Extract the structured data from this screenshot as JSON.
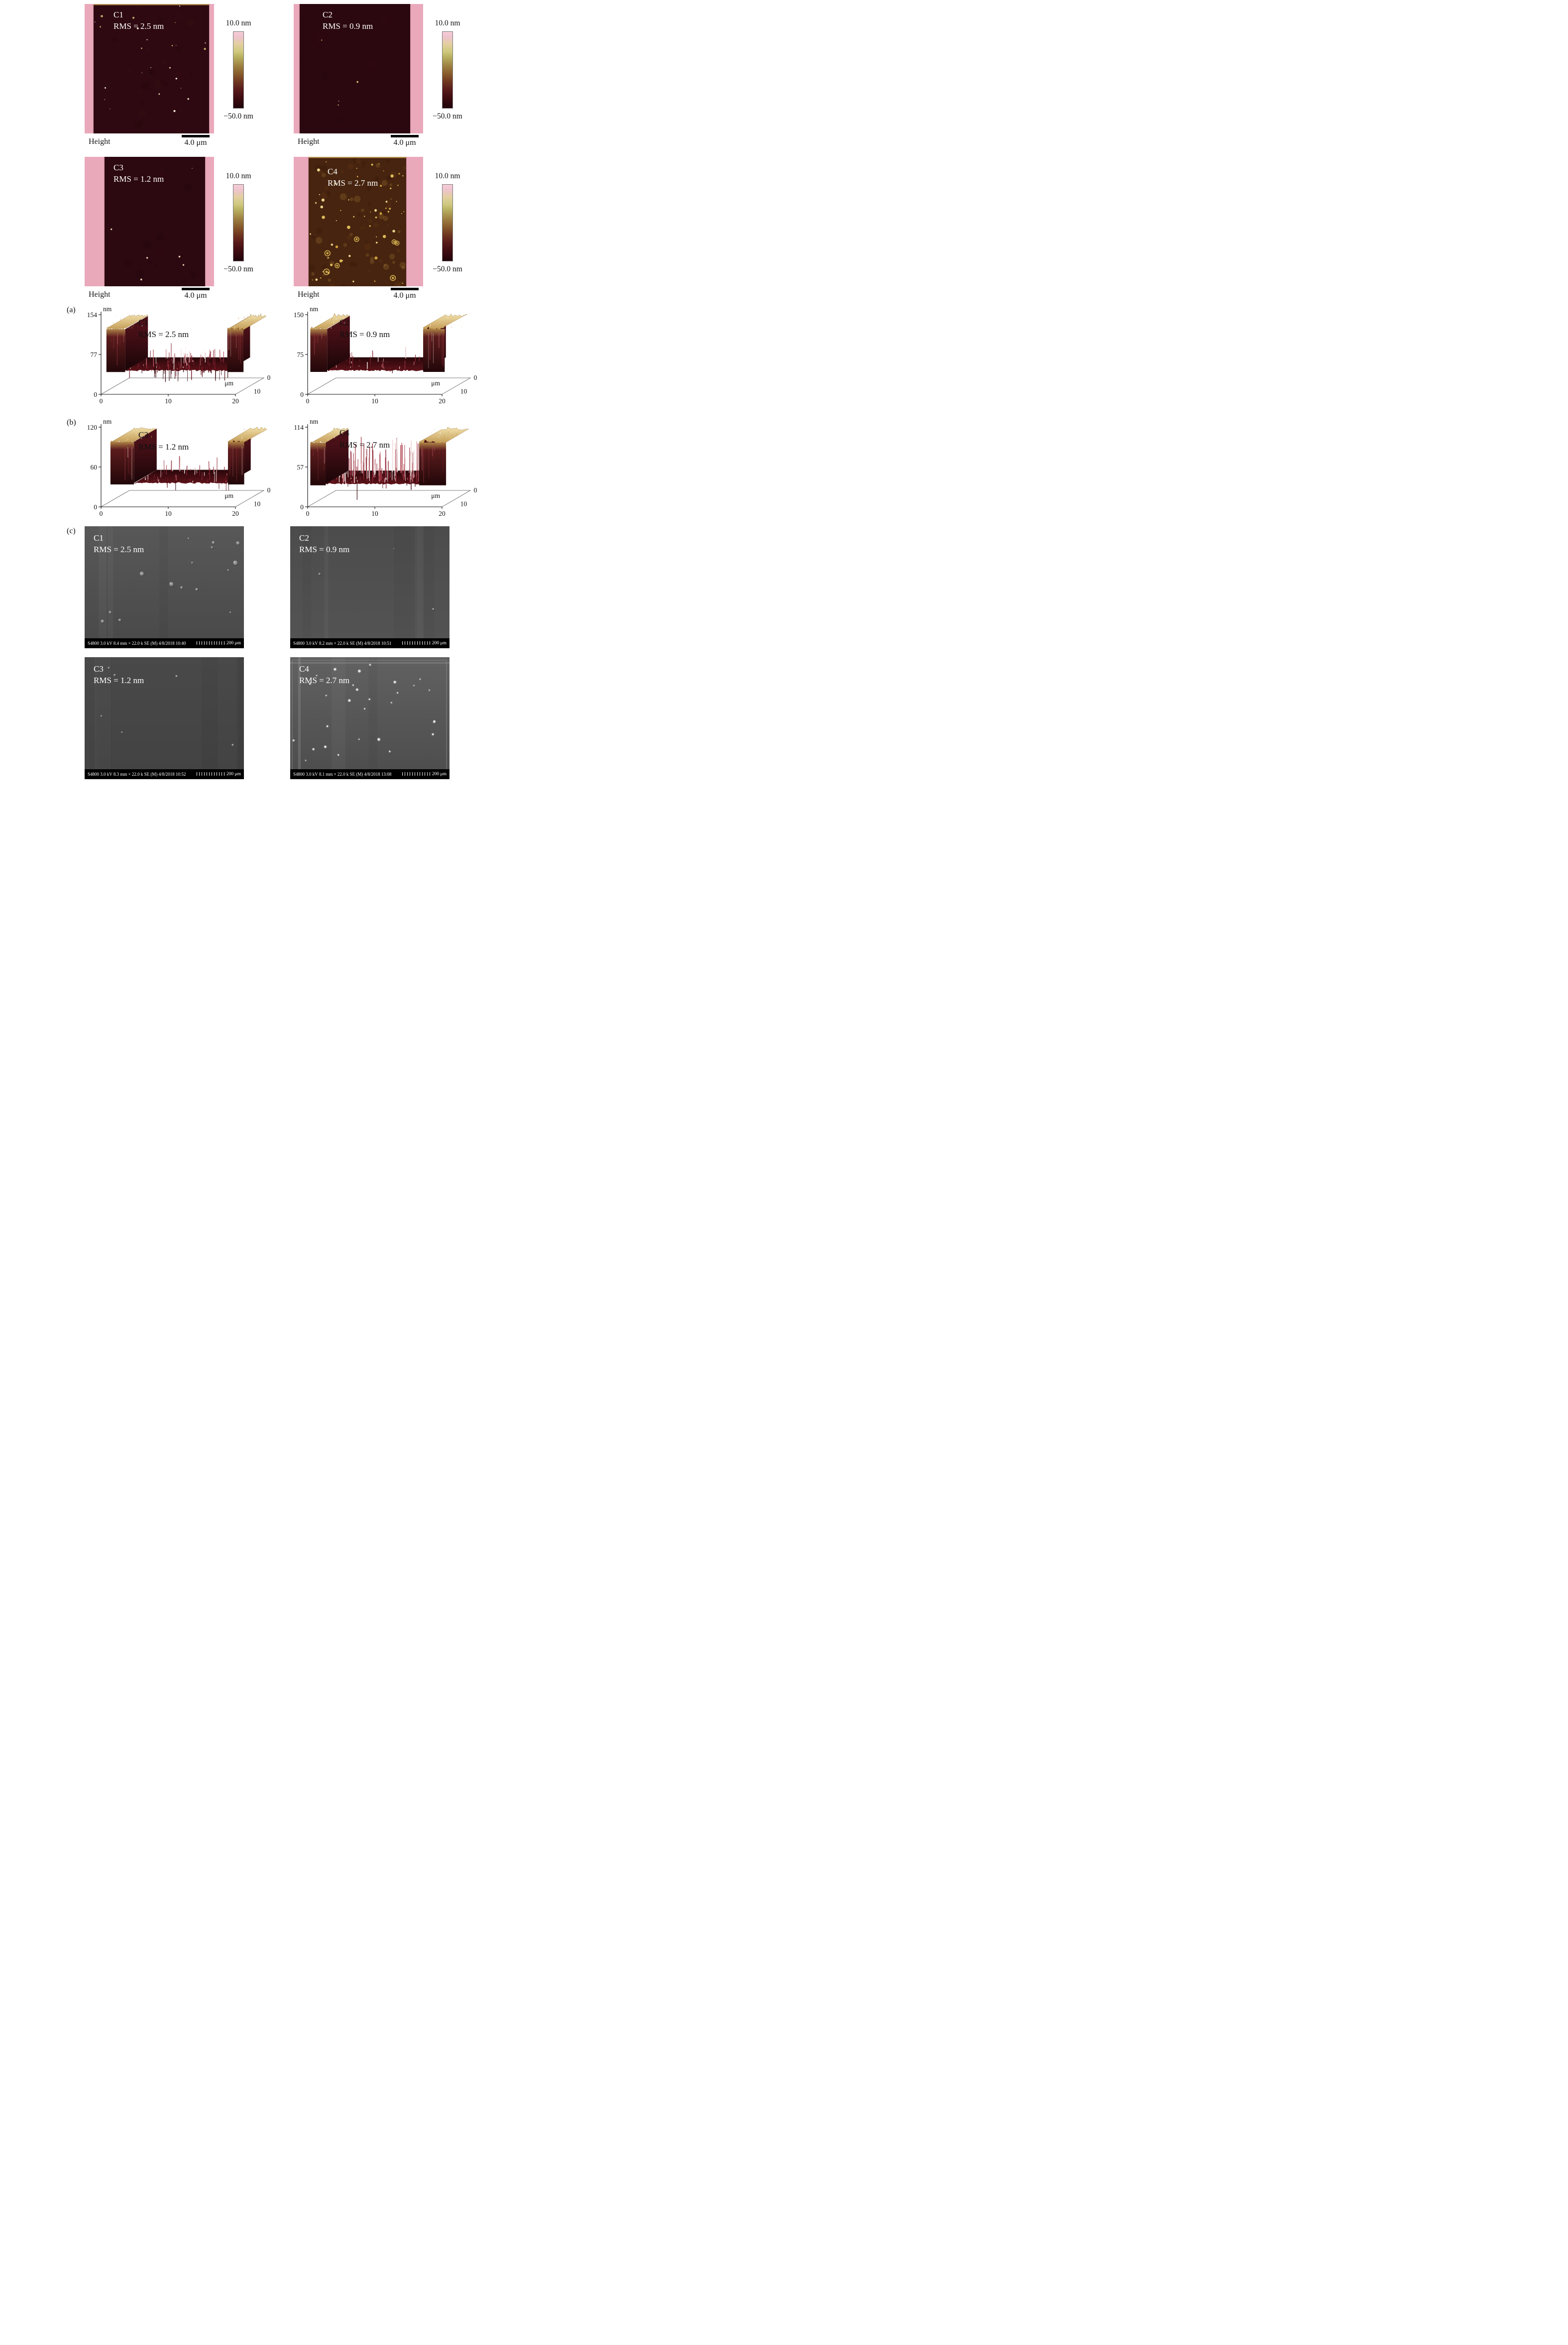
{
  "figure": {
    "section_a_label": "(a)",
    "section_b_label": "(b)",
    "section_c_label": "(c)"
  },
  "afm": {
    "colorbar_top": "10.0 nm",
    "colorbar_bottom": "−50.0 nm",
    "footer_left": "Height",
    "footer_scale": "4.0 μm",
    "panels": [
      {
        "label": "C1",
        "rms": "RMS = 2.5 nm",
        "texture": {
          "seed": 11,
          "bg": "#2e0911",
          "strip": "#eaa9bb",
          "left_strip": 18,
          "right_strip": 10,
          "top_line": true,
          "mottle": {
            "count": 26,
            "colors": [
              "#451218",
              "#1c0406",
              "#3c1a14"
            ],
            "min_r": 3,
            "max_r": 9,
            "opacity": 0.18
          },
          "specks": {
            "count": 24,
            "colors": [
              "#e9debc",
              "#cdb26a",
              "#f7f1dd"
            ],
            "min_r": 0.7,
            "max_r": 2.3
          },
          "big_specks": 0
        }
      },
      {
        "label": "C2",
        "rms": "RMS = 0.9 nm",
        "texture": {
          "seed": 22,
          "bg": "#2b0810",
          "strip": "#eaa9bb",
          "left_strip": 12,
          "right_strip": 26,
          "top_line": false,
          "mottle": {
            "count": 14,
            "colors": [
              "#3e1016",
              "#1c0406"
            ],
            "min_r": 3,
            "max_r": 9,
            "opacity": 0.14
          },
          "specks": {
            "count": 4,
            "colors": [
              "#e2c878",
              "#cdb26a"
            ],
            "min_r": 0.8,
            "max_r": 2.0
          },
          "big_specks": 0
        }
      },
      {
        "label": "C3",
        "rms": "RMS = 1.2 nm",
        "texture": {
          "seed": 33,
          "bg": "#2c0810",
          "strip": "#eaa9bb",
          "left_strip": 40,
          "right_strip": 18,
          "top_line": false,
          "mottle": {
            "count": 14,
            "colors": [
              "#3e1016",
              "#1c0406"
            ],
            "min_r": 3,
            "max_r": 9,
            "opacity": 0.14
          },
          "specks": {
            "count": 6,
            "colors": [
              "#e2c878",
              "#f0e4bc"
            ],
            "min_r": 0.8,
            "max_r": 2.2
          },
          "big_specks": 0
        }
      },
      {
        "label": "C4",
        "rms": "RMS = 2.7 nm",
        "texture": {
          "seed": 44,
          "bg": "#47240f",
          "strip": "#eaa9bb",
          "left_strip": 30,
          "right_strip": 34,
          "top_line": true,
          "mottle": {
            "count": 85,
            "colors": [
              "#c79a42",
              "#744417",
              "#2c1006"
            ],
            "min_r": 2,
            "max_r": 7,
            "opacity": 0.2
          },
          "specks": {
            "count": 60,
            "colors": [
              "#e5c35e",
              "#d2a63c",
              "#f2de92"
            ],
            "min_r": 1.0,
            "max_r": 3.4
          },
          "big_specks": 7,
          "big_color": "#dfbc55"
        }
      }
    ]
  },
  "chart_data": [
    {
      "type": "3d-surface-profile",
      "label": "C1",
      "rms": "RMS = 2.5 nm",
      "y_unit": "nm",
      "y_max": 154,
      "y_ticks": [
        0,
        77,
        154
      ],
      "x_unit": "μm",
      "x_ticks_um": [
        0,
        10,
        20
      ],
      "z_ticks_um": [
        0,
        10
      ],
      "plateau_top_nm": 126,
      "trench_floor_nm": 46,
      "left_edge_um": 0.8,
      "trench_start_um": 3.6,
      "trench_end_um": 18.8,
      "right_edge_um": 21.2,
      "spikes_up": 70,
      "spikes_down": 55,
      "spike_max_nm": 38,
      "seed": 101
    },
    {
      "type": "3d-surface-profile",
      "label": "C2",
      "rms": "RMS = 0.9 nm",
      "y_unit": "nm",
      "y_max": 150,
      "y_ticks": [
        0,
        75,
        150
      ],
      "x_unit": "μm",
      "x_ticks_um": [
        0,
        10,
        20
      ],
      "z_ticks_um": [
        0,
        10
      ],
      "plateau_top_nm": 123,
      "trench_floor_nm": 45,
      "left_edge_um": 0.4,
      "trench_start_um": 2.9,
      "trench_end_um": 17.2,
      "right_edge_um": 20.4,
      "spikes_up": 32,
      "spikes_down": 8,
      "spike_max_nm": 20,
      "seed": 202
    },
    {
      "type": "3d-surface-profile",
      "label": "C3",
      "rms": "RMS = 1.2 nm",
      "y_unit": "nm",
      "y_max": 120,
      "y_ticks": [
        0,
        60,
        120
      ],
      "x_unit": "μm",
      "x_ticks_um": [
        0,
        10,
        20
      ],
      "z_ticks_um": [
        0,
        10
      ],
      "plateau_top_nm": 98,
      "trench_floor_nm": 36,
      "left_edge_um": 1.4,
      "trench_start_um": 4.9,
      "trench_end_um": 18.9,
      "right_edge_um": 21.3,
      "spikes_up": 45,
      "spikes_down": 12,
      "spike_max_nm": 20,
      "seed": 303
    },
    {
      "type": "3d-surface-profile",
      "label": "C4",
      "rms": "RMS = 2.7 nm",
      "y_unit": "nm",
      "y_max": 114,
      "y_ticks": [
        0,
        57,
        114
      ],
      "x_unit": "μm",
      "x_ticks_um": [
        0,
        10,
        20
      ],
      "z_ticks_um": [
        0,
        10
      ],
      "plateau_top_nm": 92,
      "trench_floor_nm": 33,
      "left_edge_um": 0.4,
      "trench_start_um": 2.7,
      "trench_end_um": 16.6,
      "right_edge_um": 20.6,
      "spikes_up": 160,
      "spikes_down": 10,
      "spike_max_nm": 50,
      "seed": 404
    }
  ],
  "sem": {
    "panels": [
      {
        "label": "C1",
        "rms": "RMS = 2.5 nm",
        "status": "S4800 3.0 kV 8.4 mm × 22.0 k SE (M) 4/8/2018 10:40",
        "scale": "200 μm",
        "texture": {
          "seed": 51,
          "bg1": "#585858",
          "bg2": "#4a4a4a",
          "bands": 3,
          "frame": false,
          "particles": {
            "count": 15,
            "style": "dim",
            "min_r": 1.5,
            "max_r": 4.5
          }
        }
      },
      {
        "label": "C2",
        "rms": "RMS = 0.9 nm",
        "status": "S4800 3.0 kV 8.2 mm × 22.0 k SE (M) 4/8/2018 10:51",
        "scale": "200 μm",
        "texture": {
          "seed": 52,
          "bg1": "#4c4c4c",
          "bg2": "#535353",
          "bands": 6,
          "frame": false,
          "particles": {
            "count": 3,
            "style": "dim",
            "min_r": 1.0,
            "max_r": 2.0
          }
        }
      },
      {
        "label": "C3",
        "rms": "RMS = 1.2 nm",
        "status": "S4800 3.0 kV 8.3 mm × 22.0 k SE (M) 4/8/2018 10:52",
        "scale": "200 μm",
        "texture": {
          "seed": 53,
          "bg1": "#494949",
          "bg2": "#434343",
          "bands": 5,
          "frame": false,
          "particles": {
            "count": 6,
            "style": "dim",
            "min_r": 1.0,
            "max_r": 2.5
          }
        }
      },
      {
        "label": "C4",
        "rms": "RMS = 2.7 nm",
        "status": "S4800 3.0 kV 8.1 mm × 22.0 k SE (M) 4/8/2018 13:08",
        "scale": "200 μm",
        "texture": {
          "seed": 54,
          "bg1": "#616161",
          "bg2": "#4e4e4e",
          "bands": 2,
          "frame": true,
          "particles": {
            "count": 30,
            "style": "bright",
            "min_r": 1.0,
            "max_r": 2.6
          }
        }
      }
    ]
  }
}
